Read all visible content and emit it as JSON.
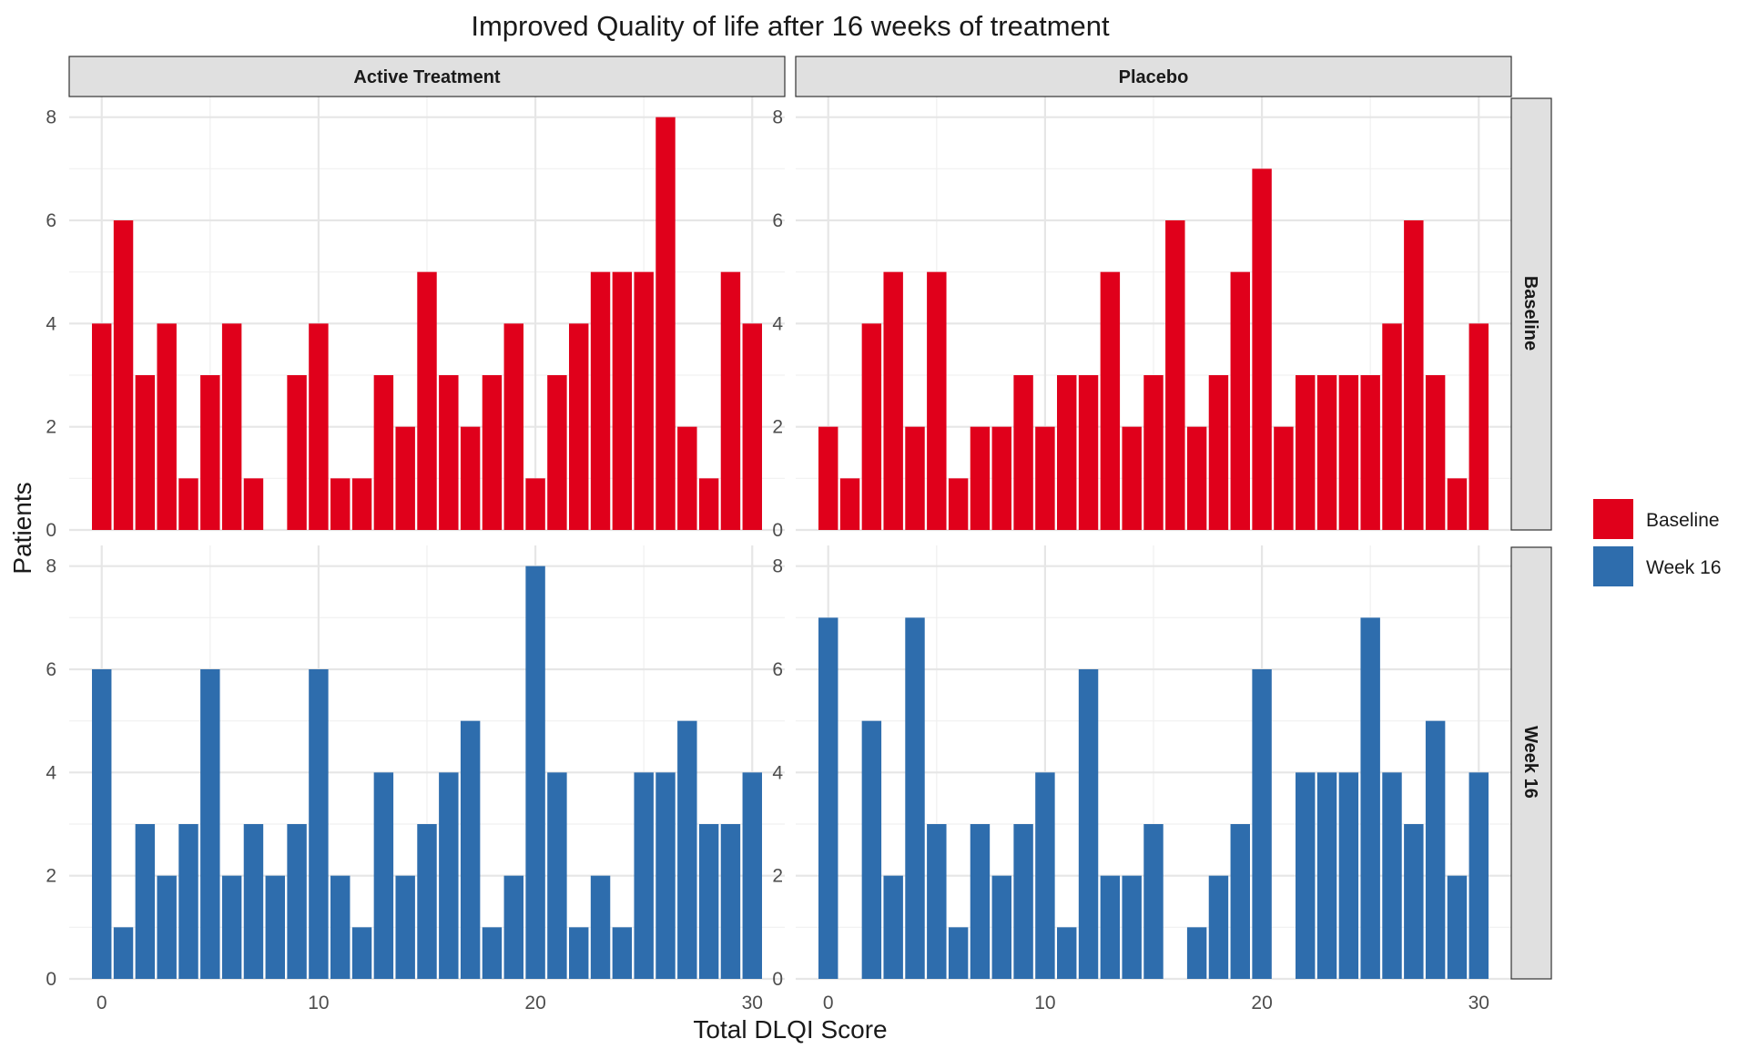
{
  "chart_data": {
    "type": "bar",
    "title": "Improved Quality of life after 16 weeks of treatment",
    "xlabel": "Total DLQI Score",
    "ylabel": "Patients",
    "xlim": [
      -1.5,
      31.5
    ],
    "ylim": [
      0,
      8.4
    ],
    "x_ticks": [
      0,
      10,
      20,
      30
    ],
    "y_ticks": [
      0,
      2,
      4,
      6,
      8
    ],
    "grid": true,
    "legend_position": "right",
    "column_facets": [
      "Active Treatment",
      "Placebo"
    ],
    "row_facets": [
      "Baseline",
      "Week 16"
    ],
    "x": [
      0,
      1,
      2,
      3,
      4,
      5,
      6,
      7,
      8,
      9,
      10,
      11,
      12,
      13,
      14,
      15,
      16,
      17,
      18,
      19,
      20,
      21,
      22,
      23,
      24,
      25,
      26,
      27,
      28,
      29,
      30
    ],
    "series": [
      {
        "name": "Baseline",
        "color": "#E0001B",
        "row_facet": "Baseline",
        "facets": {
          "Active Treatment": [
            4,
            6,
            3,
            4,
            1,
            3,
            4,
            1,
            0,
            3,
            4,
            1,
            1,
            3,
            2,
            5,
            3,
            2,
            3,
            4,
            1,
            3,
            4,
            5,
            5,
            5,
            8,
            2,
            1,
            5,
            4
          ],
          "Placebo": [
            2,
            1,
            4,
            5,
            2,
            5,
            1,
            2,
            2,
            3,
            2,
            3,
            3,
            5,
            2,
            3,
            6,
            2,
            3,
            5,
            7,
            2,
            3,
            3,
            3,
            3,
            4,
            6,
            3,
            1,
            4
          ]
        }
      },
      {
        "name": "Week 16",
        "color": "#2E6DAD",
        "row_facet": "Week 16",
        "facets": {
          "Active Treatment": [
            6,
            1,
            3,
            2,
            3,
            6,
            2,
            3,
            2,
            3,
            6,
            2,
            1,
            4,
            2,
            3,
            4,
            5,
            1,
            2,
            8,
            4,
            1,
            2,
            1,
            4,
            4,
            5,
            3,
            3,
            4
          ],
          "Placebo": [
            7,
            0,
            5,
            2,
            7,
            3,
            1,
            3,
            2,
            3,
            4,
            1,
            6,
            2,
            2,
            3,
            0,
            1,
            2,
            3,
            6,
            0,
            4,
            4,
            4,
            7,
            4,
            3,
            5,
            2,
            4
          ]
        }
      }
    ]
  }
}
